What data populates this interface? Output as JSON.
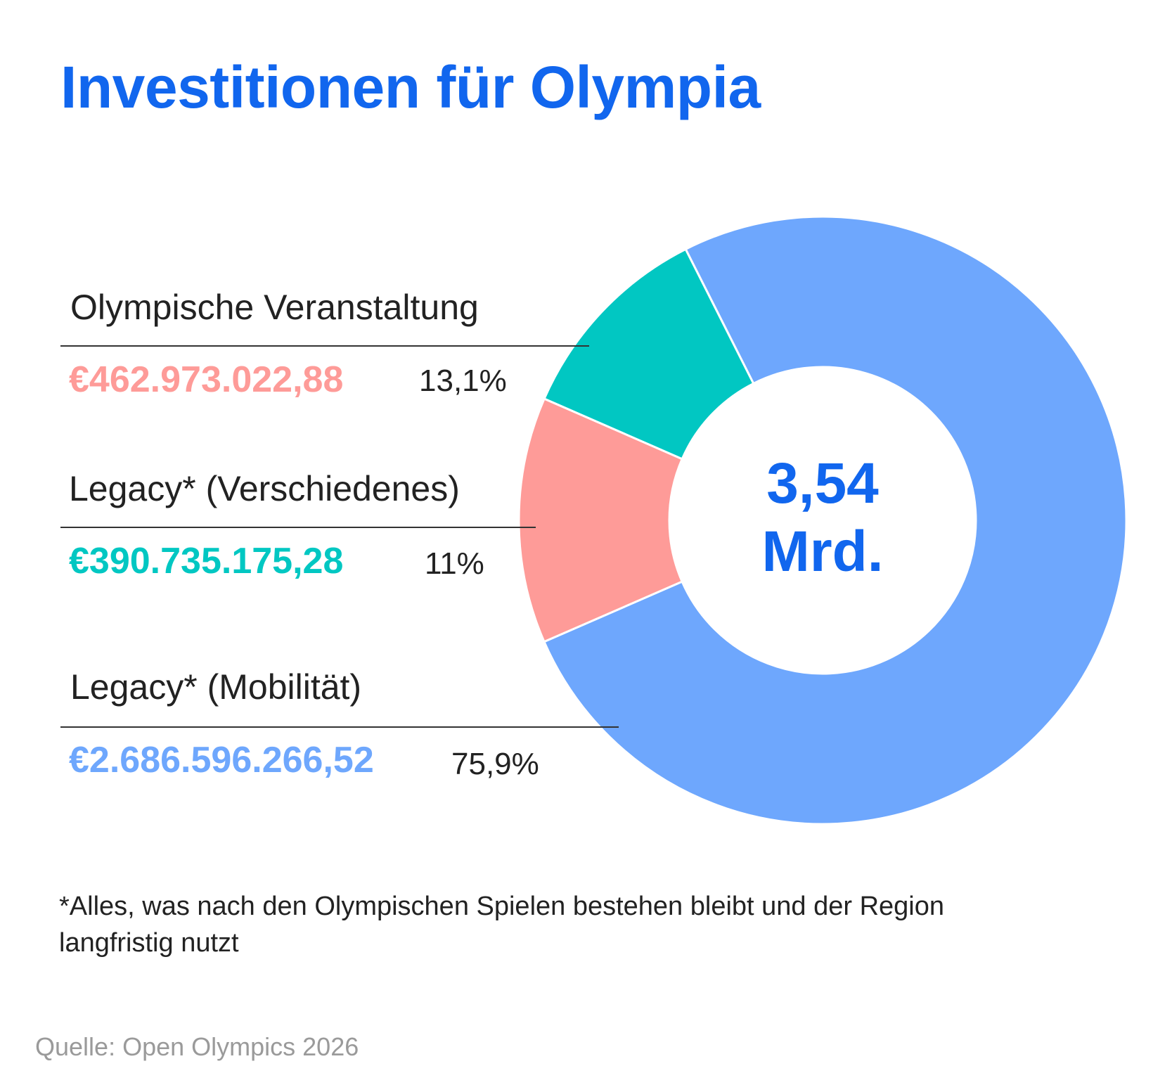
{
  "title": "Investitionen für Olympia",
  "center_label": {
    "line1": "3,54",
    "line2": "Mrd."
  },
  "colors": {
    "title": "#1166ee",
    "center": "#1166ee",
    "source": "#9a9a9a"
  },
  "chart_data": {
    "type": "pie",
    "variant": "donut",
    "title": "Investitionen für Olympia",
    "total_label": "3,54 Mrd.",
    "segments": [
      {
        "name": "Olympische Veranstaltung",
        "amount_label": "€462.973.022,88",
        "amount": 462973022.88,
        "percent_label": "13,1%",
        "percent": 13.1,
        "color": "#fe9b98"
      },
      {
        "name": "Legacy* (Verschiedenes)",
        "amount_label": "€390.735.175,28",
        "amount": 390735175.28,
        "percent_label": "11%",
        "percent": 11.0,
        "color": "#01c7c2"
      },
      {
        "name": "Legacy* (Mobilität)",
        "amount_label": "€2.686.596.266,52",
        "amount": 2686596266.52,
        "percent_label": "75,9%",
        "percent": 75.9,
        "color": "#6ea7fd"
      }
    ]
  },
  "footnote": "*Alles, was nach den Olympischen Spielen bestehen bleibt und der Region langfristig nutzt",
  "source": "Quelle: Open Olympics 2026"
}
